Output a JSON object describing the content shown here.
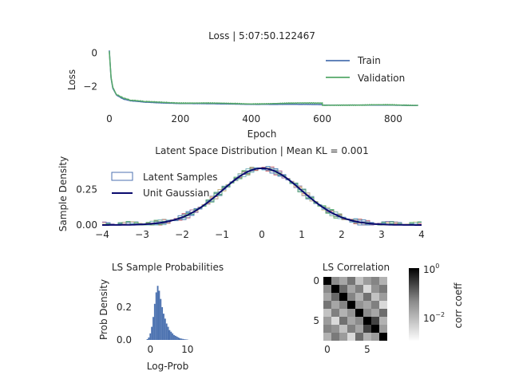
{
  "chart_data": [
    {
      "id": "loss",
      "type": "line",
      "title": "Loss | 5:07:50.122467",
      "xlabel": "Epoch",
      "ylabel": "Loss",
      "xlim": [
        -20,
        880
      ],
      "ylim": [
        -3.4,
        0.3
      ],
      "xticks": [
        0,
        200,
        400,
        600,
        800
      ],
      "yticks": [
        0,
        -2
      ],
      "legend_position": "top-right",
      "series": [
        {
          "name": "Train",
          "color": "#4c72b0",
          "x": [
            0,
            5,
            10,
            20,
            40,
            60,
            100,
            150,
            200,
            300,
            400,
            500,
            600,
            601,
            700,
            800,
            870
          ],
          "y": [
            0.15,
            -1.5,
            -2.1,
            -2.5,
            -2.75,
            -2.85,
            -2.93,
            -2.98,
            -3.0,
            -3.03,
            -3.05,
            -3.06,
            -3.07,
            -3.1,
            -3.1,
            -3.11,
            -3.12
          ]
        },
        {
          "name": "Validation",
          "color": "#55a868",
          "x": [
            0,
            5,
            10,
            20,
            40,
            60,
            100,
            150,
            200,
            300,
            400,
            500,
            600,
            601,
            700,
            800,
            870
          ],
          "y": [
            0.1,
            -1.45,
            -2.05,
            -2.45,
            -2.7,
            -2.82,
            -2.9,
            -2.95,
            -2.97,
            -3.0,
            -3.02,
            -3.0,
            -2.98,
            -3.1,
            -3.1,
            -3.1,
            -3.1
          ]
        }
      ]
    },
    {
      "id": "latent",
      "type": "area",
      "title": "Latent Space Distribution | Mean KL = 0.001",
      "xlabel": "",
      "ylabel": "Sample Density",
      "xlim": [
        -4,
        4
      ],
      "ylim": [
        0,
        0.46
      ],
      "xticks": [
        "−4",
        "−3",
        "−2",
        "−1",
        "0",
        "1",
        "2",
        "3",
        "4"
      ],
      "yticks": [
        "0.00",
        "0.25"
      ],
      "legend_position": "top-left",
      "series": [
        {
          "name": "Latent Samples",
          "color": "#4c72b0",
          "kind": "step-histogram"
        },
        {
          "name": "Unit Gaussian",
          "color": "#0a0a6e",
          "kind": "line",
          "function": "standard normal pdf"
        }
      ]
    },
    {
      "id": "logprob",
      "type": "bar",
      "title": "LS Sample Probabilities",
      "xlabel": "Log-Prob",
      "ylabel": "Prob Density",
      "xlim": [
        -3.5,
        12
      ],
      "ylim": [
        0,
        0.37
      ],
      "xticks": [
        "0",
        "10"
      ],
      "yticks": [
        "0.0",
        "0.2"
      ],
      "color": "#4c72b0",
      "bins": [
        -1.0,
        -0.6,
        -0.2,
        0.2,
        0.6,
        1.0,
        1.4,
        1.8,
        2.2,
        2.6,
        3.0,
        3.4,
        3.8,
        4.2,
        4.6,
        5.0,
        5.4,
        5.8,
        6.2,
        6.6,
        7.0,
        7.4,
        7.8,
        8.2,
        8.6,
        9.0,
        9.4,
        9.8
      ],
      "values": [
        0.005,
        0.015,
        0.04,
        0.08,
        0.14,
        0.22,
        0.29,
        0.33,
        0.3,
        0.25,
        0.2,
        0.16,
        0.13,
        0.1,
        0.08,
        0.06,
        0.05,
        0.04,
        0.03,
        0.025,
        0.02,
        0.015,
        0.01,
        0.008,
        0.006,
        0.004,
        0.003,
        0.002
      ]
    },
    {
      "id": "corr",
      "type": "heatmap",
      "title": "LS Correlation",
      "xticks": [
        "0",
        "5"
      ],
      "yticks": [
        "0",
        "5"
      ],
      "colorbar_label": "corr coeff",
      "colorbar_scale": "log",
      "colorbar_ticks": [
        "10",
        "10"
      ],
      "colorbar_tick_exponents": [
        "0",
        "−2"
      ],
      "colormap": "gray_r",
      "matrix": [
        [
          1.0,
          0.08,
          0.05,
          0.12,
          0.03,
          0.06,
          0.09,
          0.04
        ],
        [
          0.08,
          1.0,
          0.15,
          0.05,
          0.1,
          0.02,
          0.07,
          0.11
        ],
        [
          0.05,
          0.15,
          1.0,
          0.09,
          0.04,
          0.13,
          0.03,
          0.06
        ],
        [
          0.12,
          0.05,
          0.09,
          1.0,
          0.07,
          0.05,
          0.1,
          0.02
        ],
        [
          0.03,
          0.1,
          0.04,
          0.07,
          1.0,
          0.08,
          0.05,
          0.14
        ],
        [
          0.06,
          0.02,
          0.13,
          0.05,
          0.08,
          1.0,
          0.3,
          0.04
        ],
        [
          0.09,
          0.07,
          0.03,
          0.1,
          0.05,
          0.3,
          1.0,
          0.06
        ],
        [
          0.04,
          0.11,
          0.06,
          0.02,
          0.14,
          0.04,
          0.06,
          1.0
        ]
      ]
    }
  ]
}
